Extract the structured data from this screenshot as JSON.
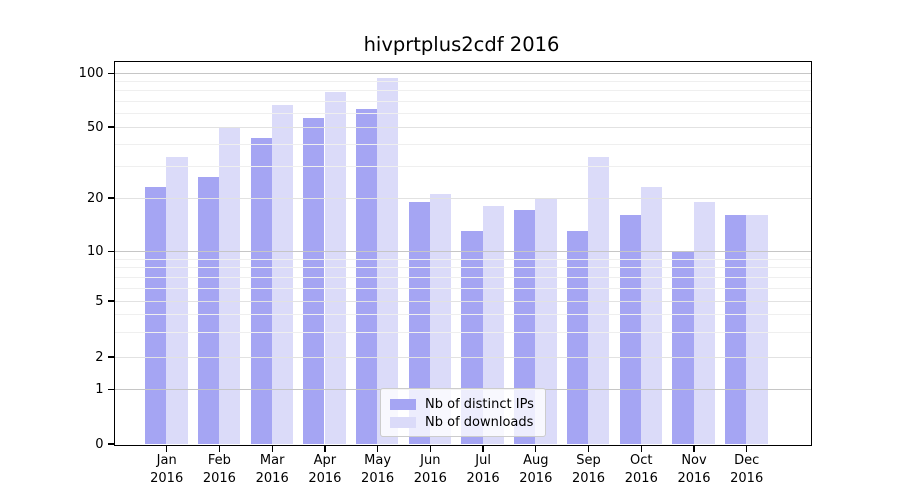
{
  "title": "hivprtplus2cdf 2016",
  "chart_data": {
    "type": "bar",
    "title": "hivprtplus2cdf 2016",
    "categories": [
      "Jan 2016",
      "Feb 2016",
      "Mar 2016",
      "Apr 2016",
      "May 2016",
      "Jun 2016",
      "Jul 2016",
      "Aug 2016",
      "Sep 2016",
      "Oct 2016",
      "Nov 2016",
      "Dec 2016"
    ],
    "x_tick_months": [
      "Jan",
      "Feb",
      "Mar",
      "Apr",
      "May",
      "Jun",
      "Jul",
      "Aug",
      "Sep",
      "Oct",
      "Nov",
      "Dec"
    ],
    "x_tick_year": "2016",
    "series": [
      {
        "name": "Nb of distinct IPs",
        "color": "#a5a5f3",
        "values": [
          23,
          26,
          43,
          56,
          63,
          19,
          13,
          17,
          13,
          16,
          10,
          16
        ]
      },
      {
        "name": "Nb of downloads",
        "color": "#dbdbf9",
        "values": [
          34,
          50,
          66,
          78,
          94,
          21,
          18,
          20,
          34,
          23,
          19,
          16
        ]
      }
    ],
    "yscale": "pseudo-log",
    "yticks": [
      0,
      1,
      2,
      5,
      10,
      20,
      50,
      100
    ],
    "grid_mid_lines": [
      2,
      5,
      20,
      50
    ],
    "grid_major_lines": [
      1,
      10,
      100
    ],
    "grid_minor_lines": [
      3,
      4,
      6,
      7,
      8,
      9,
      30,
      40,
      60,
      70,
      80,
      90
    ],
    "ylim": [
      0,
      110
    ],
    "grid": true,
    "legend_position": "lower center",
    "xlabel": "",
    "ylabel": ""
  },
  "colors": {
    "bar_distinct_ips": "#a5a5f3",
    "bar_downloads": "#dbdbf9",
    "grid_major": "#c6c6c6",
    "grid_mid": "#e2e2e2",
    "grid_minor": "#efefef",
    "axis": "#000000",
    "legend_border": "#cccccc"
  }
}
